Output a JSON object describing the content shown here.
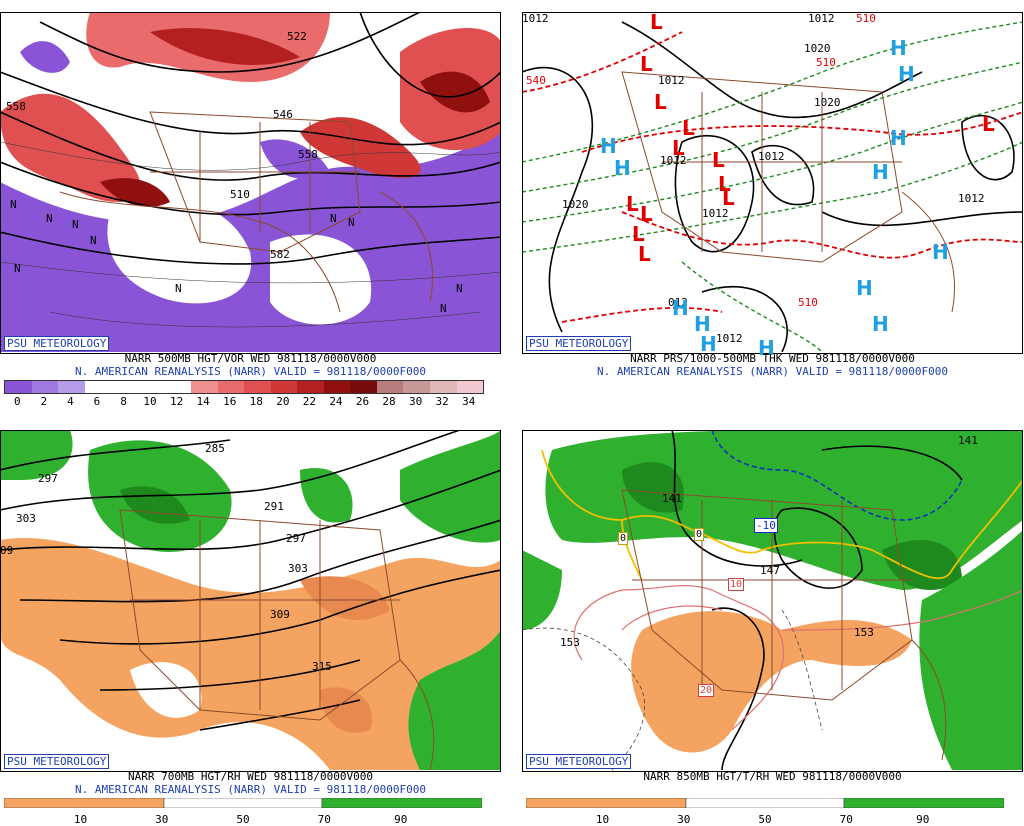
{
  "panels": [
    {
      "badge": "PSU METEOROLOGY",
      "caption_line1": "NARR 500MB HGT/VOR WED 981118/0000V000",
      "caption_line2": "N. AMERICAN REANALYSIS (NARR) VALID = 981118/0000F000",
      "colorbar_ticks": [
        "0",
        "2",
        "4",
        "6",
        "8",
        "10",
        "12",
        "14",
        "16",
        "18",
        "20",
        "22",
        "24",
        "26",
        "28",
        "30",
        "32",
        "34"
      ],
      "contour_labels": [
        "522",
        "558",
        "546",
        "558",
        "510",
        "582"
      ],
      "n_markers": [
        "N",
        "N",
        "N",
        "N",
        "N",
        "N",
        "N",
        "N",
        "N",
        "N"
      ]
    },
    {
      "badge": "PSU METEOROLOGY",
      "caption_line1": "NARR PRS/1000-500MB THK WED 981118/0000V000",
      "caption_line2": "N. AMERICAN REANALYSIS (NARR) VALID = 981118/0000F000",
      "contour_labels": [
        "1012",
        "1012",
        "1020",
        "510",
        "1012",
        "1020",
        "1020",
        "1012",
        "1012",
        "1012",
        "510",
        "1012",
        "510",
        "1012",
        "540",
        "012"
      ],
      "pressure_centers": [
        "L",
        "L",
        "L",
        "L",
        "L",
        "L",
        "L",
        "L",
        "L",
        "L",
        "L",
        "L",
        "L",
        "H",
        "H",
        "H",
        "H",
        "H",
        "H",
        "H",
        "H",
        "H",
        "H",
        "H",
        "H",
        "H"
      ]
    },
    {
      "badge": "PSU METEOROLOGY",
      "caption_line1": "NARR 700MB HGT/RH WED 981118/0000V000",
      "caption_line2": "N. AMERICAN REANALYSIS (NARR) VALID = 981118/0000F000",
      "colorbar_ticks": [
        "10",
        "30",
        "50",
        "70",
        "90"
      ],
      "contour_labels": [
        "285",
        "297",
        "303",
        "09",
        "291",
        "297",
        "303",
        "309",
        "315"
      ]
    },
    {
      "badge": "PSU METEOROLOGY",
      "caption_line1": "NARR 850MB HGT/T/RH WED 981118/0000V000",
      "colorbar_ticks": [
        "10",
        "30",
        "50",
        "70",
        "90"
      ],
      "contour_labels": [
        "141",
        "-10",
        "0",
        "0",
        "141",
        "147",
        "153",
        "153",
        "10",
        "20"
      ]
    }
  ],
  "colors": {
    "vort_scale": [
      "#8a54d6",
      "#a07ae0",
      "#b49de6",
      "#ffffff",
      "#ffffff",
      "#ffffff",
      "#ffffff",
      "#f08f8f",
      "#ea6b6b",
      "#e05050",
      "#d03838",
      "#b42020",
      "#901010",
      "#780c0c",
      "#b87c7c",
      "#c89898",
      "#e0b8b8",
      "#f4c8d0"
    ],
    "rh_dry": "#f4a460",
    "rh_moist": "#2fb02f",
    "map_lines": "#8b4a2b",
    "badge": "#1f3fb0",
    "low_marker": "#e00000",
    "high_marker": "#20a0e0"
  }
}
